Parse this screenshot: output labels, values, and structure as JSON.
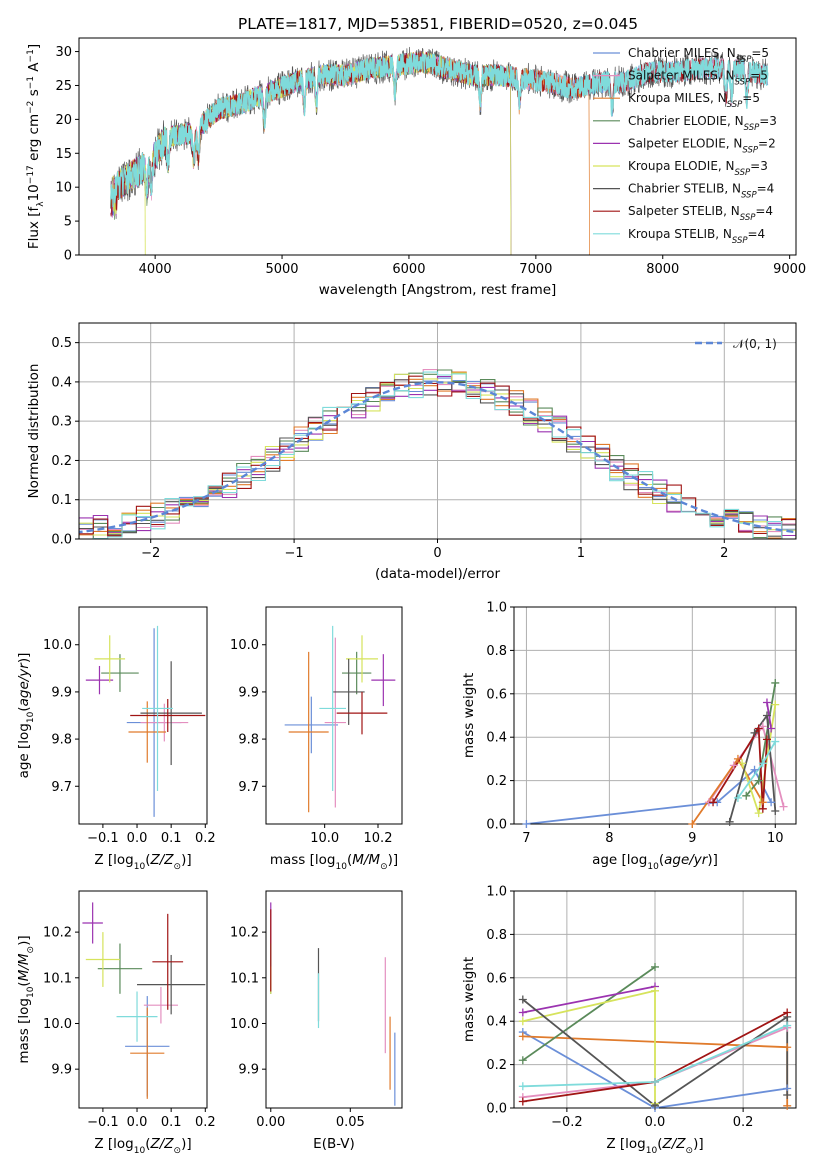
{
  "figure": {
    "title": "PLATE=1817, MJD=53851, FIBERID=0520, z=0.045"
  },
  "colors": {
    "chabrier_miles": "#6b8fd8",
    "salpeter_miles": "#e48fbf",
    "kroupa_miles": "#e07b2c",
    "chabrier_elodie": "#5a8a5a",
    "salpeter_elodie": "#9b33b0",
    "kroupa_elodie": "#d6e35c",
    "chabrier_stelib": "#555555",
    "salpeter_stelib": "#a01414",
    "kroupa_stelib": "#7fdbdb",
    "normal": "#5b86d6",
    "grid": "#b0b0b0"
  },
  "chart_data": [
    {
      "id": "spectrum",
      "type": "line",
      "xlabel": "wavelength [Angstrom, rest frame]",
      "ylabel": "Flux [f_λ10^-17 erg cm^-2 s^-1 A^-1]",
      "xlim": [
        3400,
        9050
      ],
      "ylim": [
        0,
        32
      ],
      "xticks": [
        4000,
        5000,
        6000,
        7000,
        8000,
        9000
      ],
      "yticks": [
        0,
        5,
        10,
        15,
        20,
        25,
        30
      ],
      "grid": false,
      "legend_position": "right",
      "continuum": {
        "x": [
          3650,
          3800,
          3950,
          4100,
          4300,
          4500,
          4700,
          4900,
          5100,
          5300,
          5500,
          5700,
          5900,
          6100,
          6300,
          6500,
          6700,
          6900,
          7100,
          7300,
          7500,
          7700,
          7900,
          8100,
          8300,
          8500,
          8700,
          8830
        ],
        "y": [
          9.5,
          11.5,
          13.5,
          17.5,
          18,
          21.5,
          22.5,
          24,
          25.5,
          26.5,
          26.5,
          27.5,
          28,
          28.5,
          27.5,
          26.5,
          26.5,
          26,
          25.5,
          24.5,
          25.5,
          25.5,
          27,
          27,
          27.5,
          27.5,
          27,
          26.5
        ]
      },
      "series": [
        {
          "name": "Chabrier MILES",
          "nssp": 5,
          "color_key": "chabrier_miles"
        },
        {
          "name": "Salpeter MILES",
          "nssp": 5,
          "color_key": "salpeter_miles"
        },
        {
          "name": "Kroupa MILES",
          "nssp": 5,
          "color_key": "kroupa_miles",
          "cutoff": 7420
        },
        {
          "name": "Chabrier ELODIE",
          "nssp": 3,
          "color_key": "chabrier_elodie",
          "cutoff": 6800
        },
        {
          "name": "Salpeter ELODIE",
          "nssp": 2,
          "color_key": "salpeter_elodie",
          "cutoff": 6800
        },
        {
          "name": "Kroupa ELODIE",
          "nssp": 3,
          "color_key": "kroupa_elodie",
          "cutoff": 6800
        },
        {
          "name": "Chabrier STELIB",
          "nssp": 4,
          "color_key": "chabrier_stelib"
        },
        {
          "name": "Salpeter STELIB",
          "nssp": 4,
          "color_key": "salpeter_stelib"
        },
        {
          "name": "Kroupa STELIB",
          "nssp": 4,
          "color_key": "kroupa_stelib"
        }
      ]
    },
    {
      "id": "residuals",
      "type": "histogram",
      "xlabel": "(data-model)/error",
      "ylabel": "Normed distribution",
      "xlim": [
        -2.5,
        2.5
      ],
      "ylim": [
        0,
        0.55
      ],
      "xticks": [
        -2,
        -1,
        0,
        1,
        2
      ],
      "yticks": [
        0.0,
        0.1,
        0.2,
        0.3,
        0.4,
        0.5
      ],
      "grid": true,
      "bin_width": 0.1,
      "reference_label": "𝒩(0, 1)",
      "legend_position": "top-right"
    },
    {
      "id": "age_vs_Z",
      "type": "errorbar",
      "xlabel": "Z [log10(Z/Z⊙)]",
      "ylabel": "age  [log10(age/yr)]",
      "xlim": [
        -0.17,
        0.205
      ],
      "ylim": [
        9.62,
        10.08
      ],
      "xticks": [
        -0.1,
        0.0,
        0.1,
        0.2
      ],
      "yticks": [
        9.7,
        9.8,
        9.9,
        10.0
      ],
      "points": [
        {
          "color_key": "chabrier_miles",
          "x": 0.05,
          "xerr": 0.08,
          "y": 9.835,
          "yerr": 0.2
        },
        {
          "color_key": "salpeter_miles",
          "x": 0.08,
          "xerr": 0.07,
          "y": 9.835,
          "yerr": 0.04
        },
        {
          "color_key": "kroupa_miles",
          "x": 0.03,
          "xerr": 0.055,
          "y": 9.815,
          "yerr": 0.065
        },
        {
          "color_key": "chabrier_elodie",
          "x": -0.05,
          "xerr": 0.055,
          "y": 9.94,
          "yerr": 0.04
        },
        {
          "color_key": "salpeter_elodie",
          "x": -0.11,
          "xerr": 0.04,
          "y": 9.925,
          "yerr": 0.03
        },
        {
          "color_key": "kroupa_elodie",
          "x": -0.08,
          "xerr": 0.045,
          "y": 9.97,
          "yerr": 0.05
        },
        {
          "color_key": "chabrier_stelib",
          "x": 0.1,
          "xerr": 0.09,
          "y": 9.855,
          "yerr": 0.11
        },
        {
          "color_key": "salpeter_stelib",
          "x": 0.09,
          "xerr": 0.11,
          "y": 9.85,
          "yerr": 0.035
        },
        {
          "color_key": "kroupa_stelib",
          "x": 0.06,
          "xerr": 0.045,
          "y": 9.865,
          "yerr": 0.175
        }
      ]
    },
    {
      "id": "age_vs_mass",
      "type": "errorbar",
      "xlabel": "mass [log10(M/M⊙)]",
      "ylabel": "",
      "xlim": [
        9.78,
        10.29
      ],
      "ylim": [
        9.62,
        10.08
      ],
      "xticks": [
        10.0,
        10.2
      ],
      "yticks": [
        9.7,
        9.8,
        9.9,
        10.0
      ],
      "points": [
        {
          "color_key": "chabrier_miles",
          "x": 9.95,
          "xerr": 0.1,
          "y": 9.83,
          "yerr": 0.06
        },
        {
          "color_key": "salpeter_miles",
          "x": 10.04,
          "xerr": 0.04,
          "y": 9.835,
          "yerr": 0.18
        },
        {
          "color_key": "kroupa_miles",
          "x": 9.94,
          "xerr": 0.075,
          "y": 9.815,
          "yerr": 0.17
        },
        {
          "color_key": "chabrier_elodie",
          "x": 10.12,
          "xerr": 0.055,
          "y": 9.94,
          "yerr": 0.045
        },
        {
          "color_key": "salpeter_elodie",
          "x": 10.22,
          "xerr": 0.045,
          "y": 9.925,
          "yerr": 0.055
        },
        {
          "color_key": "kroupa_elodie",
          "x": 10.14,
          "xerr": 0.06,
          "y": 9.97,
          "yerr": 0.05
        },
        {
          "color_key": "chabrier_stelib",
          "x": 10.09,
          "xerr": 0.06,
          "y": 9.9,
          "yerr": 0.07
        },
        {
          "color_key": "salpeter_stelib",
          "x": 10.14,
          "xerr": 0.095,
          "y": 9.855,
          "yerr": 0.045
        },
        {
          "color_key": "kroupa_stelib",
          "x": 10.03,
          "xerr": 0.05,
          "y": 9.865,
          "yerr": 0.175
        }
      ]
    },
    {
      "id": "weight_vs_age",
      "type": "line",
      "xlabel": "age  [log10(age/yr)]",
      "ylabel": "mass weight",
      "xlim": [
        6.85,
        10.25
      ],
      "ylim": [
        0,
        1
      ],
      "xticks": [
        7,
        8,
        9,
        10
      ],
      "yticks": [
        0.0,
        0.2,
        0.4,
        0.6,
        0.8,
        1.0
      ],
      "grid": true,
      "series": [
        {
          "color_key": "chabrier_miles",
          "x": [
            7.0,
            9.3,
            9.75,
            9.95
          ],
          "y": [
            0.0,
            0.1,
            0.25,
            0.1
          ]
        },
        {
          "color_key": "salpeter_miles",
          "x": [
            9.2,
            9.5,
            9.85,
            10.1
          ],
          "y": [
            0.1,
            0.27,
            0.45,
            0.08
          ]
        },
        {
          "color_key": "kroupa_miles",
          "x": [
            9.0,
            9.55,
            9.85
          ],
          "y": [
            0.0,
            0.3,
            0.1
          ]
        },
        {
          "color_key": "chabrier_elodie",
          "x": [
            9.65,
            9.8,
            10.0
          ],
          "y": [
            0.13,
            0.2,
            0.65
          ]
        },
        {
          "color_key": "salpeter_elodie",
          "x": [
            9.9,
            9.95
          ],
          "y": [
            0.56,
            0.44
          ]
        },
        {
          "color_key": "kroupa_elodie",
          "x": [
            9.6,
            9.8,
            10.0
          ],
          "y": [
            0.28,
            0.05,
            0.55
          ]
        },
        {
          "color_key": "chabrier_stelib",
          "x": [
            9.45,
            9.75,
            9.9,
            10.0
          ],
          "y": [
            0.01,
            0.42,
            0.5,
            0.06
          ]
        },
        {
          "color_key": "salpeter_stelib",
          "x": [
            9.25,
            9.8,
            9.85,
            9.9
          ],
          "y": [
            0.1,
            0.44,
            0.07,
            0.39
          ]
        },
        {
          "color_key": "kroupa_stelib",
          "x": [
            9.55,
            9.85,
            10.0
          ],
          "y": [
            0.12,
            0.28,
            0.38
          ]
        }
      ]
    },
    {
      "id": "mass_vs_Z",
      "type": "errorbar",
      "xlabel": "Z [log10(Z/Z⊙)]",
      "ylabel": "mass [log10(M/M⊙)]",
      "xlim": [
        -0.17,
        0.205
      ],
      "ylim": [
        9.815,
        10.29
      ],
      "xticks": [
        -0.1,
        0.0,
        0.1,
        0.2
      ],
      "yticks": [
        9.9,
        10.0,
        10.1,
        10.2
      ],
      "points": [
        {
          "color_key": "chabrier_miles",
          "x": 0.03,
          "xerr": 0.065,
          "y": 9.95,
          "yerr": 0.11
        },
        {
          "color_key": "salpeter_miles",
          "x": 0.07,
          "xerr": 0.05,
          "y": 10.04,
          "yerr": 0.04
        },
        {
          "color_key": "kroupa_miles",
          "x": 0.03,
          "xerr": 0.05,
          "y": 9.935,
          "yerr": 0.1
        },
        {
          "color_key": "chabrier_elodie",
          "x": -0.05,
          "xerr": 0.065,
          "y": 10.12,
          "yerr": 0.055
        },
        {
          "color_key": "salpeter_elodie",
          "x": -0.13,
          "xerr": 0.03,
          "y": 10.22,
          "yerr": 0.045
        },
        {
          "color_key": "kroupa_elodie",
          "x": -0.1,
          "xerr": 0.05,
          "y": 10.14,
          "yerr": 0.06
        },
        {
          "color_key": "chabrier_stelib",
          "x": 0.1,
          "xerr": 0.1,
          "y": 10.085,
          "yerr": 0.065
        },
        {
          "color_key": "salpeter_stelib",
          "x": 0.09,
          "xerr": 0.045,
          "y": 10.135,
          "yerr": 0.105
        },
        {
          "color_key": "kroupa_stelib",
          "x": 0.0,
          "xerr": 0.06,
          "y": 10.015,
          "yerr": 0.055
        }
      ]
    },
    {
      "id": "mass_vs_ebv",
      "type": "errorbar",
      "xlabel": "E(B-V)",
      "ylabel": "",
      "xlim": [
        -0.003,
        0.0825
      ],
      "ylim": [
        9.815,
        10.29
      ],
      "xticks": [
        0.0,
        0.05
      ],
      "yticks": [
        9.9,
        10.0,
        10.1,
        10.2
      ],
      "points": [
        {
          "color_key": "chabrier_miles",
          "x": 0.078,
          "xerr": 0.0,
          "y": 9.9,
          "yerr": 0.08
        },
        {
          "color_key": "salpeter_miles",
          "x": 0.072,
          "xerr": 0.0,
          "y": 10.04,
          "yerr": 0.105
        },
        {
          "color_key": "kroupa_miles",
          "x": 0.075,
          "xerr": 0.0,
          "y": 9.935,
          "yerr": 0.08
        },
        {
          "color_key": "chabrier_elodie",
          "x": 0.0,
          "xerr": 0.0,
          "y": 10.12,
          "yerr": 0.055
        },
        {
          "color_key": "salpeter_elodie",
          "x": 0.0,
          "xerr": 0.0,
          "y": 10.22,
          "yerr": 0.045
        },
        {
          "color_key": "kroupa_elodie",
          "x": 0.0,
          "xerr": 0.0,
          "y": 10.095,
          "yerr": 0.03
        },
        {
          "color_key": "chabrier_stelib",
          "x": 0.03,
          "xerr": 0.0,
          "y": 10.085,
          "yerr": 0.08
        },
        {
          "color_key": "salpeter_stelib",
          "x": 0.0,
          "xerr": 0.0,
          "y": 10.16,
          "yerr": 0.09
        },
        {
          "color_key": "kroupa_stelib",
          "x": 0.03,
          "xerr": 0.0,
          "y": 10.05,
          "yerr": 0.06
        }
      ]
    },
    {
      "id": "weight_vs_Z",
      "type": "line",
      "xlabel": "Z [log10(Z/Z⊙)]",
      "ylabel": "mass weight",
      "xlim": [
        -0.32,
        0.32
      ],
      "ylim": [
        0,
        1
      ],
      "xticks": [
        -0.2,
        0.0,
        0.2
      ],
      "yticks": [
        0.0,
        0.2,
        0.4,
        0.6,
        0.8,
        1.0
      ],
      "grid": true,
      "series": [
        {
          "color_key": "chabrier_miles",
          "x": [
            -0.3,
            0.0,
            0.3
          ],
          "y": [
            0.35,
            0.0,
            0.09
          ]
        },
        {
          "color_key": "salpeter_miles",
          "x": [
            -0.3,
            0.0,
            0.3
          ],
          "y": [
            0.05,
            0.12,
            0.37
          ]
        },
        {
          "color_key": "kroupa_miles",
          "x": [
            -0.3,
            0.3,
            0.3
          ],
          "y": [
            0.33,
            0.28,
            0.01
          ]
        },
        {
          "color_key": "chabrier_elodie",
          "x": [
            -0.3,
            0.0
          ],
          "y": [
            0.22,
            0.65
          ]
        },
        {
          "color_key": "salpeter_elodie",
          "x": [
            -0.3,
            0.0
          ],
          "y": [
            0.44,
            0.56
          ]
        },
        {
          "color_key": "kroupa_elodie",
          "x": [
            -0.3,
            0.0,
            0.0
          ],
          "y": [
            0.4,
            0.54,
            0.02
          ]
        },
        {
          "color_key": "chabrier_stelib",
          "x": [
            -0.3,
            0.0,
            0.3,
            0.3
          ],
          "y": [
            0.5,
            0.01,
            0.42,
            0.06
          ]
        },
        {
          "color_key": "salpeter_stelib",
          "x": [
            -0.3,
            0.0,
            0.3
          ],
          "y": [
            0.03,
            0.12,
            0.44
          ]
        },
        {
          "color_key": "kroupa_stelib",
          "x": [
            -0.3,
            0.0,
            0.3
          ],
          "y": [
            0.1,
            0.12,
            0.38
          ]
        }
      ]
    }
  ]
}
